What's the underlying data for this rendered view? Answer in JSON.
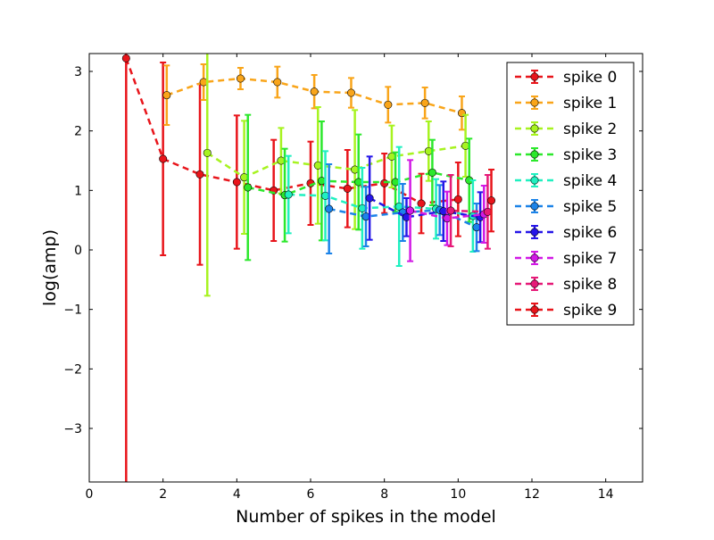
{
  "chart_data": {
    "type": "scatter",
    "style": "errorbar with dashed connecting line and circular markers",
    "xlabel": "Number of spikes in the model",
    "ylabel": "log(amp)",
    "xlim": [
      0,
      15
    ],
    "ylim": [
      -3.9,
      3.3
    ],
    "xticks": [
      0,
      2,
      4,
      6,
      8,
      10,
      12,
      14
    ],
    "yticks": [
      -3,
      -2,
      -1,
      0,
      1,
      2,
      3
    ],
    "ytick_labels": [
      "−3",
      "−2",
      "−1",
      "0",
      "1",
      "2",
      "3"
    ],
    "grid": false,
    "legend_position": "top-right",
    "series": [
      {
        "name": "spike 0",
        "color": "#e8151b",
        "x": [
          1.0,
          2.0,
          3.0,
          4.0,
          5.0,
          6.0,
          7.0,
          8.0,
          9.0,
          10.0
        ],
        "y": [
          3.22,
          1.53,
          1.27,
          1.14,
          1.0,
          1.12,
          1.03,
          1.12,
          0.78,
          0.85
        ],
        "err": [
          7.2,
          1.62,
          1.52,
          1.12,
          0.85,
          0.7,
          0.65,
          0.5,
          0.5,
          0.62
        ]
      },
      {
        "name": "spike 1",
        "color": "#f9a51a",
        "x": [
          2.1,
          3.1,
          4.1,
          5.1,
          6.1,
          7.1,
          8.1,
          9.1,
          10.1
        ],
        "y": [
          2.6,
          2.82,
          2.88,
          2.82,
          2.66,
          2.64,
          2.44,
          2.47,
          2.3
        ],
        "err": [
          0.5,
          0.3,
          0.18,
          0.26,
          0.28,
          0.25,
          0.3,
          0.26,
          0.28
        ]
      },
      {
        "name": "spike 2",
        "color": "#a7f320",
        "x": [
          3.2,
          4.2,
          5.2,
          6.2,
          7.2,
          8.2,
          9.2,
          10.2
        ],
        "y": [
          1.63,
          1.22,
          1.5,
          1.42,
          1.35,
          1.57,
          1.66,
          1.75
        ],
        "err": [
          2.4,
          0.95,
          0.55,
          0.98,
          1.0,
          0.52,
          0.5,
          0.52
        ]
      },
      {
        "name": "spike 3",
        "color": "#2ce82c",
        "x": [
          4.3,
          5.3,
          6.3,
          7.3,
          8.3,
          9.3,
          10.3
        ],
        "y": [
          1.05,
          0.92,
          1.16,
          1.14,
          1.14,
          1.3,
          1.17
        ],
        "err": [
          1.22,
          0.78,
          1.0,
          0.8,
          0.5,
          0.55,
          0.7
        ]
      },
      {
        "name": "spike 4",
        "color": "#20f0c0",
        "x": [
          5.4,
          6.4,
          7.4,
          8.4,
          9.4,
          10.4
        ],
        "y": [
          0.93,
          0.91,
          0.7,
          0.73,
          0.69,
          0.57
        ],
        "err": [
          0.65,
          0.75,
          0.68,
          1.0,
          0.5,
          0.6
        ]
      },
      {
        "name": "spike 5",
        "color": "#1c83e8",
        "x": [
          6.5,
          7.5,
          8.5,
          9.5,
          10.5
        ],
        "y": [
          0.69,
          0.56,
          0.63,
          0.67,
          0.38
        ],
        "err": [
          0.75,
          0.5,
          0.48,
          0.42,
          0.4
        ]
      },
      {
        "name": "spike 6",
        "color": "#2616e8",
        "x": [
          7.6,
          8.6,
          9.6,
          10.6
        ],
        "y": [
          0.87,
          0.55,
          0.65,
          0.55
        ],
        "err": [
          0.7,
          0.32,
          0.5,
          0.42
        ]
      },
      {
        "name": "spike 7",
        "color": "#d21ae5",
        "x": [
          8.7,
          9.7,
          10.7
        ],
        "y": [
          0.66,
          0.53,
          0.6
        ],
        "err": [
          0.85,
          0.45,
          0.48
        ]
      },
      {
        "name": "spike 8",
        "color": "#e61a78",
        "x": [
          9.8,
          10.8
        ],
        "y": [
          0.66,
          0.64
        ],
        "err": [
          0.6,
          0.62
        ]
      },
      {
        "name": "spike 9",
        "color": "#e8151b",
        "x": [
          10.9
        ],
        "y": [
          0.83
        ],
        "err": [
          0.52
        ]
      }
    ]
  }
}
